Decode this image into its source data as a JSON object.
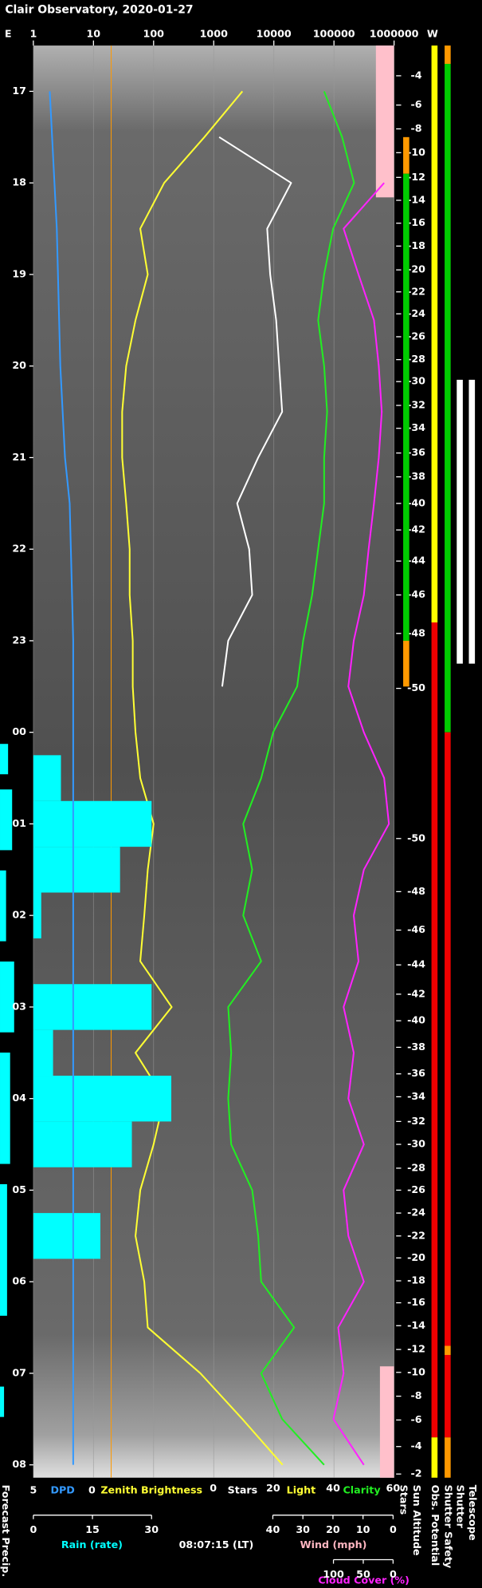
{
  "chart_data": {
    "type": "line",
    "title": "Clair Observatory, 2020-01-27",
    "edge_left": "E",
    "edge_right": "W",
    "xlim": [
      1,
      1000000
    ],
    "xticks": [
      1,
      10,
      100,
      1000,
      10000,
      100000,
      1000000
    ],
    "xlog": true,
    "grid": true,
    "ylim": [
      16.5,
      32.14
    ],
    "yticks": [
      17,
      18,
      19,
      20,
      21,
      22,
      23,
      {
        "value": 24,
        "label": "00"
      },
      {
        "value": 25,
        "label": "01"
      },
      {
        "value": 26,
        "label": "02"
      },
      {
        "value": 27,
        "label": "03"
      },
      {
        "value": 28,
        "label": "04"
      },
      {
        "value": 29,
        "label": "05"
      },
      {
        "value": 30,
        "label": "06"
      },
      {
        "value": 31,
        "label": "07"
      },
      {
        "value": 32,
        "label": "08"
      }
    ],
    "time_label": "08:07:15 (LT)",
    "forecast_label": "Forecast Precip.",
    "times": [
      17,
      17.5,
      18,
      18.5,
      19,
      19.5,
      20,
      20.5,
      21,
      21.5,
      22,
      22.5,
      23,
      23.5,
      24,
      24.5,
      25,
      25.5,
      26,
      26.5,
      27,
      27.5,
      28,
      28.5,
      29,
      29.5,
      30,
      30.5,
      31,
      31.5,
      32
    ],
    "axes": {
      "dpd": {
        "lim": [
          5,
          0
        ],
        "ticks": [
          5,
          0
        ]
      },
      "rain": {
        "lim": [
          0,
          30
        ],
        "ticks": [
          0,
          15,
          30
        ]
      },
      "sky": {
        "lim": [
          0,
          60
        ],
        "ticks": [
          0,
          20,
          40,
          60
        ],
        "label": "Light",
        "label_color": "#ffff33"
      },
      "wind": {
        "lim": [
          40,
          0
        ],
        "ticks": [
          40,
          30,
          20,
          10,
          0
        ],
        "label": "Wind (mph)",
        "label_color": "#ffb6c1"
      },
      "cloud": {
        "lim": [
          100,
          0
        ],
        "ticks": [
          100,
          50,
          0
        ]
      }
    },
    "series": [
      {
        "name": "Zenith Brightness",
        "color": "#ffff33",
        "axis": "x",
        "mark": "line",
        "values": [
          3000,
          700,
          150,
          60,
          80,
          50,
          35,
          30,
          30,
          35,
          40,
          40,
          45,
          45,
          50,
          60,
          100,
          80,
          70,
          60,
          200,
          50,
          150,
          100,
          60,
          50,
          70,
          80,
          600,
          3000,
          14000
        ]
      },
      {
        "name": "Stars",
        "color": "#ffffff",
        "axis": "sky",
        "mark": "line",
        "values": [
          null,
          2,
          26,
          18,
          19,
          21,
          22,
          23,
          15,
          8,
          12,
          13,
          5,
          3,
          null,
          null,
          null,
          null,
          null,
          null,
          null,
          null,
          null,
          null,
          null,
          null,
          null,
          null,
          null,
          null,
          null
        ]
      },
      {
        "name": "Clarity",
        "color": "#22ee22",
        "axis": "sky",
        "mark": "line",
        "values": [
          37,
          43,
          47,
          40,
          37,
          35,
          37,
          38,
          37,
          37,
          35,
          33,
          30,
          28,
          20,
          16,
          10,
          13,
          10,
          16,
          5,
          6,
          5,
          6,
          13,
          15,
          16,
          27,
          16,
          23,
          37
        ]
      },
      {
        "name": "Cloud Cover (%)",
        "color": "#ff22ff",
        "axis": "cloud",
        "mark": "line",
        "values": [
          null,
          null,
          15,
          83,
          58,
          32,
          24,
          19,
          24,
          32,
          41,
          49,
          66,
          75,
          49,
          15,
          7,
          49,
          66,
          58,
          83,
          66,
          75,
          49,
          83,
          75,
          49,
          92,
          83,
          100,
          49
        ]
      },
      {
        "name": "Rain (rate)",
        "color": "#00ffff",
        "axis": "rain",
        "mark": "bar",
        "values": [
          0,
          0,
          0,
          0,
          0,
          0,
          0,
          0,
          0,
          0,
          0,
          0,
          0,
          0,
          0,
          7,
          30,
          22,
          2,
          0,
          30,
          5,
          35,
          25,
          0,
          17,
          0,
          0,
          0,
          0,
          0
        ]
      },
      {
        "name": "DPD",
        "color": "#3399ff",
        "axis": "dpd",
        "mark": "line",
        "values": [
          3.6,
          3.4,
          3.2,
          3.0,
          2.9,
          2.8,
          2.7,
          2.5,
          2.3,
          1.9,
          1.8,
          1.7,
          1.6,
          1.6,
          1.6,
          1.6,
          1.6,
          1.6,
          1.6,
          1.6,
          1.6,
          1.6,
          1.6,
          1.6,
          1.6,
          1.6,
          1.6,
          1.6,
          1.6,
          1.6,
          1.6
        ]
      }
    ],
    "sun_altitude": {
      "label": "Sun Altitude",
      "times": [
        16.83,
        17.15,
        17.41,
        17.67,
        17.94,
        18.19,
        18.44,
        18.69,
        18.95,
        19.19,
        19.43,
        19.68,
        19.93,
        20.17,
        20.43,
        20.68,
        20.95,
        21.21,
        21.5,
        21.79,
        22.13,
        22.5,
        22.92,
        23.52,
        25.16,
        25.74,
        26.16,
        26.54,
        26.86,
        27.15,
        27.44,
        27.73,
        27.98,
        28.25,
        28.5,
        28.76,
        29.0,
        29.25,
        29.5,
        29.74,
        29.99,
        30.23,
        30.48,
        30.74,
        30.99,
        31.25,
        31.51,
        31.8,
        32.1
      ],
      "values": [
        -4,
        -6,
        -8,
        -10,
        -12,
        -14,
        -16,
        -18,
        -20,
        -22,
        -24,
        -26,
        -28,
        -30,
        -32,
        -34,
        -36,
        -38,
        -40,
        -42,
        -44,
        -46,
        -48,
        -50,
        -50,
        -48,
        -46,
        -44,
        -42,
        -40,
        -38,
        -36,
        -34,
        -32,
        -30,
        -28,
        -26,
        -24,
        -22,
        -20,
        -18,
        -16,
        -14,
        -12,
        -10,
        -8,
        -6,
        -4,
        -2
      ]
    },
    "status": [
      {
        "name": "Stars",
        "segments": [
          {
            "from": 17.5,
            "to": 17.9,
            "color": "#ff9900"
          },
          {
            "from": 17.9,
            "to": 23.0,
            "color": "#00cc00"
          },
          {
            "from": 23.0,
            "to": 23.5,
            "color": "#ff9900"
          }
        ]
      },
      {
        "name": "Obs. Potential",
        "segments": [
          {
            "from": 16.5,
            "to": 22.8,
            "color": "#ffff00"
          },
          {
            "from": 22.8,
            "to": 31.7,
            "color": "#ee0000"
          },
          {
            "from": 31.7,
            "to": 32.14,
            "color": "#ffff00"
          }
        ]
      },
      {
        "name": "Shutter Safety",
        "segments": [
          {
            "from": 16.5,
            "to": 16.7,
            "color": "#ff9900"
          },
          {
            "from": 16.7,
            "to": 24.0,
            "color": "#00cc00"
          },
          {
            "from": 24.0,
            "to": 30.7,
            "color": "#ee0000"
          },
          {
            "from": 30.7,
            "to": 30.8,
            "color": "#ff9900"
          },
          {
            "from": 30.8,
            "to": 31.7,
            "color": "#ee0000"
          },
          {
            "from": 31.7,
            "to": 32.14,
            "color": "#ff9900"
          }
        ]
      },
      {
        "name": "Shutter",
        "segments": [
          {
            "from": 20.15,
            "to": 23.25,
            "color": "#ffffff"
          }
        ]
      },
      {
        "name": "Telescope",
        "segments": [
          {
            "from": 20.15,
            "to": 23.25,
            "color": "#ffffff"
          }
        ]
      }
    ]
  }
}
